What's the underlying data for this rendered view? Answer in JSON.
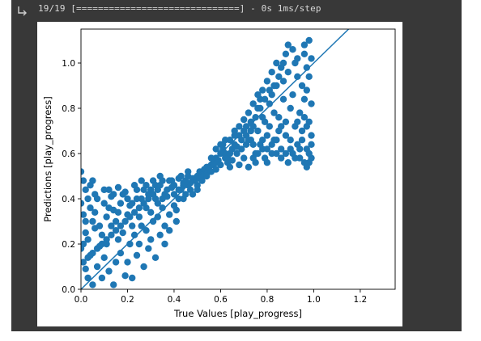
{
  "output": {
    "log_text": "19/19 [==============================] - 0s 1ms/step"
  },
  "icons": {
    "output": "output-arrow-icon"
  },
  "colors": {
    "cell_bg": "#383838",
    "marker": "#1f77b4",
    "line": "#1f77b4"
  },
  "chart_data": {
    "type": "scatter",
    "xlabel": "True Values [play_progress]",
    "ylabel": "Predictions [play_progress]",
    "xlim": [
      0.0,
      1.35
    ],
    "ylim": [
      0.0,
      1.15
    ],
    "xticks": [
      "0.0",
      "0.2",
      "0.4",
      "0.6",
      "0.8",
      "1.0",
      "1.2"
    ],
    "yticks": [
      "0.0",
      "0.2",
      "0.4",
      "0.6",
      "0.8",
      "1.0"
    ],
    "reference_line": {
      "x": [
        0.0,
        1.17
      ],
      "y": [
        0.0,
        1.17
      ]
    },
    "series": [
      {
        "points": [
          [
            0.0,
            0.52
          ],
          [
            0.01,
            0.48
          ],
          [
            0.02,
            0.44
          ],
          [
            0.0,
            0.38
          ],
          [
            0.01,
            0.33
          ],
          [
            0.02,
            0.25
          ],
          [
            0.0,
            0.18
          ],
          [
            0.01,
            0.12
          ],
          [
            0.03,
            0.05
          ],
          [
            0.05,
            0.02
          ],
          [
            0.02,
            0.09
          ],
          [
            0.04,
            0.15
          ],
          [
            0.03,
            0.22
          ],
          [
            0.05,
            0.3
          ],
          [
            0.04,
            0.36
          ],
          [
            0.06,
            0.42
          ],
          [
            0.05,
            0.48
          ],
          [
            0.07,
            0.4
          ],
          [
            0.06,
            0.27
          ],
          [
            0.08,
            0.19
          ],
          [
            0.07,
            0.1
          ],
          [
            0.09,
            0.05
          ],
          [
            0.1,
            0.14
          ],
          [
            0.09,
            0.24
          ],
          [
            0.11,
            0.32
          ],
          [
            0.1,
            0.38
          ],
          [
            0.12,
            0.44
          ],
          [
            0.11,
            0.2
          ],
          [
            0.13,
            0.28
          ],
          [
            0.12,
            0.08
          ],
          [
            0.14,
            0.35
          ],
          [
            0.13,
            0.41
          ],
          [
            0.15,
            0.12
          ],
          [
            0.14,
            0.02
          ],
          [
            0.16,
            0.22
          ],
          [
            0.15,
            0.3
          ],
          [
            0.17,
            0.38
          ],
          [
            0.16,
            0.45
          ],
          [
            0.18,
            0.25
          ],
          [
            0.17,
            0.16
          ],
          [
            0.19,
            0.06
          ],
          [
            0.2,
            0.33
          ],
          [
            0.19,
            0.43
          ],
          [
            0.21,
            0.2
          ],
          [
            0.2,
            0.12
          ],
          [
            0.22,
            0.28
          ],
          [
            0.21,
            0.37
          ],
          [
            0.23,
            0.46
          ],
          [
            0.22,
            0.05
          ],
          [
            0.24,
            0.15
          ],
          [
            0.23,
            0.24
          ],
          [
            0.25,
            0.32
          ],
          [
            0.24,
            0.4
          ],
          [
            0.26,
            0.48
          ],
          [
            0.25,
            0.2
          ],
          [
            0.27,
            0.1
          ],
          [
            0.26,
            0.28
          ],
          [
            0.28,
            0.36
          ],
          [
            0.27,
            0.44
          ],
          [
            0.29,
            0.18
          ],
          [
            0.28,
            0.26
          ],
          [
            0.3,
            0.34
          ],
          [
            0.29,
            0.42
          ],
          [
            0.31,
            0.48
          ],
          [
            0.3,
            0.22
          ],
          [
            0.32,
            0.14
          ],
          [
            0.31,
            0.3
          ],
          [
            0.33,
            0.38
          ],
          [
            0.32,
            0.46
          ],
          [
            0.34,
            0.24
          ],
          [
            0.33,
            0.32
          ],
          [
            0.35,
            0.4
          ],
          [
            0.34,
            0.5
          ],
          [
            0.36,
            0.28
          ],
          [
            0.35,
            0.36
          ],
          [
            0.37,
            0.44
          ],
          [
            0.36,
            0.2
          ],
          [
            0.38,
            0.33
          ],
          [
            0.37,
            0.41
          ],
          [
            0.39,
            0.48
          ],
          [
            0.38,
            0.26
          ],
          [
            0.4,
            0.37
          ],
          [
            0.39,
            0.45
          ],
          [
            0.41,
            0.3
          ],
          [
            0.4,
            0.42
          ],
          [
            0.42,
            0.49
          ],
          [
            0.41,
            0.35
          ],
          [
            0.43,
            0.44
          ],
          [
            0.42,
            0.4
          ],
          [
            0.44,
            0.47
          ],
          [
            0.43,
            0.5
          ],
          [
            0.45,
            0.42
          ],
          [
            0.44,
            0.46
          ],
          [
            0.46,
            0.5
          ],
          [
            0.45,
            0.48
          ],
          [
            0.47,
            0.44
          ],
          [
            0.46,
            0.52
          ],
          [
            0.48,
            0.49
          ],
          [
            0.47,
            0.47
          ],
          [
            0.5,
            0.5
          ],
          [
            0.49,
            0.48
          ],
          [
            0.51,
            0.52
          ],
          [
            0.5,
            0.46
          ],
          [
            0.52,
            0.51
          ],
          [
            0.51,
            0.49
          ],
          [
            0.53,
            0.53
          ],
          [
            0.52,
            0.5
          ],
          [
            0.54,
            0.54
          ],
          [
            0.53,
            0.52
          ],
          [
            0.55,
            0.53
          ],
          [
            0.54,
            0.51
          ],
          [
            0.56,
            0.55
          ],
          [
            0.55,
            0.54
          ],
          [
            0.57,
            0.56
          ],
          [
            0.56,
            0.52
          ],
          [
            0.58,
            0.58
          ],
          [
            0.57,
            0.55
          ],
          [
            0.59,
            0.57
          ],
          [
            0.58,
            0.53
          ],
          [
            0.6,
            0.6
          ],
          [
            0.59,
            0.56
          ],
          [
            0.61,
            0.62
          ],
          [
            0.6,
            0.55
          ],
          [
            0.62,
            0.58
          ],
          [
            0.61,
            0.64
          ],
          [
            0.63,
            0.56
          ],
          [
            0.62,
            0.6
          ],
          [
            0.64,
            0.66
          ],
          [
            0.63,
            0.58
          ],
          [
            0.65,
            0.62
          ],
          [
            0.64,
            0.54
          ],
          [
            0.66,
            0.68
          ],
          [
            0.65,
            0.57
          ],
          [
            0.67,
            0.63
          ],
          [
            0.66,
            0.7
          ],
          [
            0.68,
            0.55
          ],
          [
            0.67,
            0.6
          ],
          [
            0.69,
            0.66
          ],
          [
            0.68,
            0.72
          ],
          [
            0.7,
            0.58
          ],
          [
            0.69,
            0.62
          ],
          [
            0.71,
            0.68
          ],
          [
            0.7,
            0.75
          ],
          [
            0.72,
            0.54
          ],
          [
            0.71,
            0.64
          ],
          [
            0.73,
            0.7
          ],
          [
            0.72,
            0.78
          ],
          [
            0.74,
            0.58
          ],
          [
            0.73,
            0.66
          ],
          [
            0.75,
            0.6
          ],
          [
            0.74,
            0.72
          ],
          [
            0.76,
            0.8
          ],
          [
            0.75,
            0.56
          ],
          [
            0.77,
            0.64
          ],
          [
            0.76,
            0.7
          ],
          [
            0.78,
            0.76
          ],
          [
            0.77,
            0.84
          ],
          [
            0.79,
            0.58
          ],
          [
            0.78,
            0.62
          ],
          [
            0.8,
            0.68
          ],
          [
            0.79,
            0.74
          ],
          [
            0.81,
            0.82
          ],
          [
            0.8,
            0.56
          ],
          [
            0.82,
            0.64
          ],
          [
            0.81,
            0.72
          ],
          [
            0.83,
            0.78
          ],
          [
            0.82,
            0.86
          ],
          [
            0.84,
            0.6
          ],
          [
            0.83,
            0.66
          ],
          [
            0.85,
            0.7
          ],
          [
            0.84,
            0.9
          ],
          [
            0.86,
            0.58
          ],
          [
            0.85,
            0.76
          ],
          [
            0.87,
            0.84
          ],
          [
            0.86,
            0.62
          ],
          [
            0.88,
            0.68
          ],
          [
            0.87,
            0.92
          ],
          [
            0.89,
            0.56
          ],
          [
            0.88,
            0.74
          ],
          [
            0.9,
            0.8
          ],
          [
            0.89,
            0.96
          ],
          [
            0.91,
            0.6
          ],
          [
            0.9,
            0.66
          ],
          [
            0.92,
            0.72
          ],
          [
            0.91,
            0.86
          ],
          [
            0.93,
            0.94
          ],
          [
            0.92,
            1.0
          ],
          [
            0.94,
            0.58
          ],
          [
            0.93,
            0.64
          ],
          [
            0.95,
            0.7
          ],
          [
            0.94,
            0.78
          ],
          [
            0.96,
            0.84
          ],
          [
            0.95,
            0.9
          ],
          [
            0.97,
            0.98
          ],
          [
            0.96,
            1.04
          ],
          [
            0.98,
            0.56
          ],
          [
            0.97,
            0.62
          ],
          [
            0.99,
            0.68
          ],
          [
            0.98,
            0.74
          ],
          [
            0.99,
            0.82
          ],
          [
            0.97,
            0.88
          ],
          [
            0.98,
            0.94
          ],
          [
            0.99,
            1.02
          ],
          [
            0.96,
            1.08
          ],
          [
            0.98,
            1.1
          ],
          [
            0.99,
            0.58
          ],
          [
            0.97,
            0.54
          ],
          [
            0.95,
            0.66
          ],
          [
            0.93,
            0.74
          ],
          [
            0.96,
            0.76
          ],
          [
            0.91,
            1.06
          ],
          [
            0.93,
            1.02
          ],
          [
            0.88,
            1.04
          ],
          [
            0.86,
            0.98
          ],
          [
            0.84,
            1.0
          ],
          [
            0.82,
            0.96
          ],
          [
            0.8,
            0.92
          ],
          [
            0.78,
            0.88
          ],
          [
            0.76,
            0.86
          ],
          [
            0.74,
            0.82
          ],
          [
            0.89,
            1.08
          ],
          [
            0.87,
            1.0
          ],
          [
            0.85,
            0.94
          ],
          [
            0.83,
            0.9
          ],
          [
            0.81,
            0.88
          ],
          [
            0.79,
            0.84
          ],
          [
            0.77,
            0.8
          ],
          [
            0.75,
            0.76
          ],
          [
            0.73,
            0.74
          ],
          [
            0.71,
            0.72
          ],
          [
            0.35,
            0.48
          ],
          [
            0.33,
            0.44
          ],
          [
            0.31,
            0.42
          ],
          [
            0.29,
            0.4
          ],
          [
            0.27,
            0.38
          ],
          [
            0.25,
            0.36
          ],
          [
            0.23,
            0.34
          ],
          [
            0.21,
            0.32
          ],
          [
            0.19,
            0.3
          ],
          [
            0.17,
            0.28
          ],
          [
            0.15,
            0.26
          ],
          [
            0.13,
            0.24
          ],
          [
            0.11,
            0.22
          ],
          [
            0.09,
            0.2
          ],
          [
            0.07,
            0.18
          ],
          [
            0.05,
            0.16
          ],
          [
            0.03,
            0.14
          ],
          [
            0.01,
            0.2
          ],
          [
            0.02,
            0.3
          ],
          [
            0.03,
            0.4
          ],
          [
            0.04,
            0.46
          ],
          [
            0.06,
            0.34
          ],
          [
            0.08,
            0.28
          ],
          [
            0.1,
            0.44
          ],
          [
            0.12,
            0.36
          ],
          [
            0.14,
            0.42
          ],
          [
            0.16,
            0.34
          ],
          [
            0.18,
            0.42
          ],
          [
            0.2,
            0.4
          ],
          [
            0.22,
            0.38
          ],
          [
            0.24,
            0.44
          ],
          [
            0.26,
            0.4
          ],
          [
            0.28,
            0.46
          ],
          [
            0.3,
            0.44
          ],
          [
            0.32,
            0.4
          ],
          [
            0.34,
            0.46
          ],
          [
            0.36,
            0.42
          ],
          [
            0.38,
            0.48
          ],
          [
            0.4,
            0.46
          ],
          [
            0.42,
            0.44
          ],
          [
            0.44,
            0.4
          ],
          [
            0.46,
            0.46
          ],
          [
            0.48,
            0.42
          ],
          [
            0.5,
            0.44
          ],
          [
            0.52,
            0.48
          ],
          [
            0.54,
            0.5
          ],
          [
            0.56,
            0.58
          ],
          [
            0.58,
            0.62
          ],
          [
            0.6,
            0.64
          ],
          [
            0.62,
            0.66
          ],
          [
            0.64,
            0.6
          ],
          [
            0.66,
            0.64
          ],
          [
            0.68,
            0.68
          ],
          [
            0.7,
            0.7
          ],
          [
            0.72,
            0.66
          ],
          [
            0.74,
            0.64
          ],
          [
            0.76,
            0.6
          ],
          [
            0.78,
            0.66
          ],
          [
            0.8,
            0.62
          ],
          [
            0.82,
            0.6
          ],
          [
            0.84,
            0.66
          ],
          [
            0.86,
            0.72
          ],
          [
            0.88,
            0.6
          ],
          [
            0.9,
            0.62
          ],
          [
            0.92,
            0.58
          ],
          [
            0.94,
            0.62
          ],
          [
            0.96,
            0.56
          ],
          [
            0.98,
            0.6
          ],
          [
            0.99,
            0.64
          ],
          [
            0.97,
            0.72
          ]
        ]
      }
    ]
  }
}
